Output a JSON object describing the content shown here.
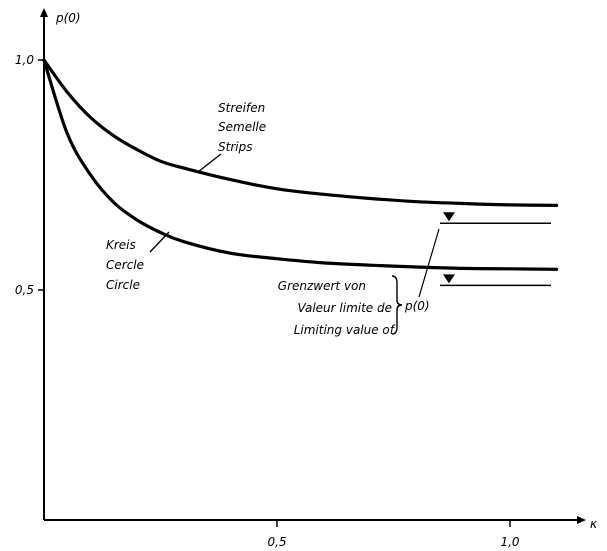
{
  "chart_data": {
    "type": "line",
    "y_axis_label": "p(0)",
    "x_axis_label": "κ",
    "xlim": [
      0,
      1.1
    ],
    "ylim": [
      0,
      1.05
    ],
    "x_ticks": [
      {
        "value": 0.5,
        "label": "0,5"
      },
      {
        "value": 1.0,
        "label": "1,0"
      }
    ],
    "y_ticks": [
      {
        "value": 0.5,
        "label": "0,5"
      },
      {
        "value": 1.0,
        "label": "1,0"
      }
    ],
    "series": [
      {
        "name_lines": [
          "Streifen",
          "Semelle",
          "Strips"
        ],
        "x": [
          0,
          0.05,
          0.1,
          0.15,
          0.2,
          0.25,
          0.3,
          0.4,
          0.5,
          0.6,
          0.7,
          0.8,
          0.9,
          1.0,
          1.1
        ],
        "y": [
          1.0,
          0.93,
          0.875,
          0.835,
          0.805,
          0.78,
          0.765,
          0.74,
          0.72,
          0.708,
          0.699,
          0.692,
          0.688,
          0.685,
          0.684
        ],
        "limit": 0.645
      },
      {
        "name_lines": [
          "Kreis",
          "Cercle",
          "Circle"
        ],
        "x": [
          0,
          0.05,
          0.1,
          0.15,
          0.2,
          0.25,
          0.3,
          0.4,
          0.5,
          0.6,
          0.7,
          0.8,
          0.9,
          1.0,
          1.1
        ],
        "y": [
          1.0,
          0.84,
          0.75,
          0.69,
          0.652,
          0.625,
          0.605,
          0.58,
          0.568,
          0.559,
          0.554,
          0.55,
          0.547,
          0.546,
          0.545
        ],
        "limit": 0.51
      }
    ],
    "annotation_lines": [
      "Grenzwert von",
      "Valeur limite de",
      "Limiting value of"
    ],
    "annotation_target": "p(0)"
  }
}
